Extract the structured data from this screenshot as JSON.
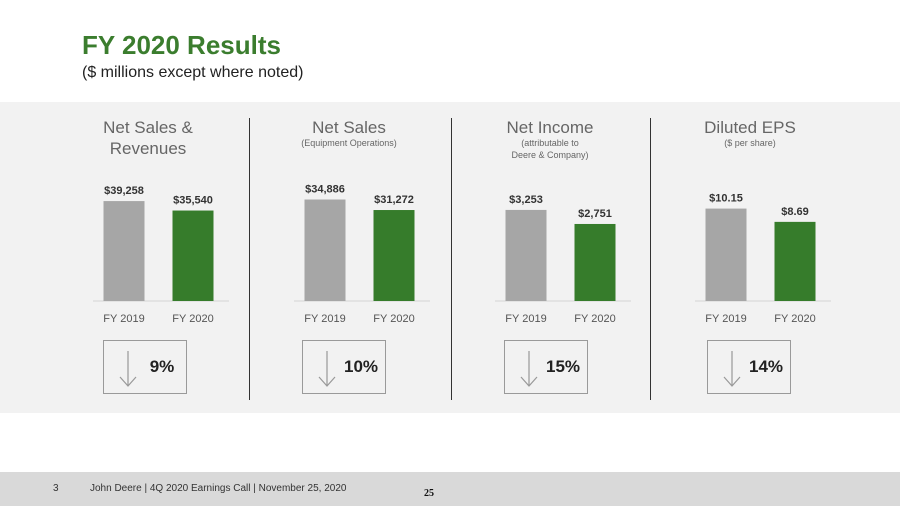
{
  "header": {
    "title": "FY 2020 Results",
    "subtitle": "($ millions except where noted)"
  },
  "chart_data": [
    {
      "type": "bar",
      "title": "Net Sales & Revenues",
      "subtitle": "",
      "categories": [
        "FY 2019",
        "FY 2020"
      ],
      "values": [
        39258,
        35540
      ],
      "data_labels": [
        "$39,258",
        "$35,540"
      ],
      "colors": [
        "#a6a6a6",
        "#367c2b"
      ],
      "ylim": [
        0,
        44000
      ],
      "change": "9%"
    },
    {
      "type": "bar",
      "title": "Net Sales",
      "subtitle": "(Equipment Operations)",
      "categories": [
        "FY 2019",
        "FY 2020"
      ],
      "values": [
        34886,
        31272
      ],
      "data_labels": [
        "$34,886",
        "$31,272"
      ],
      "colors": [
        "#a6a6a6",
        "#367c2b"
      ],
      "ylim": [
        0,
        38500
      ],
      "change": "10%"
    },
    {
      "type": "bar",
      "title": "Net Income",
      "subtitle": "(attributable to Deere & Company)",
      "categories": [
        "FY 2019",
        "FY 2020"
      ],
      "values": [
        3253,
        2751
      ],
      "data_labels": [
        "$3,253",
        "$2,751"
      ],
      "colors": [
        "#a6a6a6",
        "#367c2b"
      ],
      "ylim": [
        0,
        4000
      ],
      "change": "15%"
    },
    {
      "type": "bar",
      "title": "Diluted EPS",
      "subtitle": "($ per share)",
      "categories": [
        "FY 2019",
        "FY 2020"
      ],
      "values": [
        10.15,
        8.69
      ],
      "data_labels": [
        "$10.15",
        "$8.69"
      ],
      "colors": [
        "#a6a6a6",
        "#367c2b"
      ],
      "ylim": [
        0,
        12.3
      ],
      "change": "14%"
    }
  ],
  "footer": {
    "slide_number": "3",
    "text": "John Deere | 4Q 2020 Earnings Call | November 25, 2020",
    "page": "25"
  },
  "icons": {
    "change_arrow": "down-arrow-icon"
  }
}
